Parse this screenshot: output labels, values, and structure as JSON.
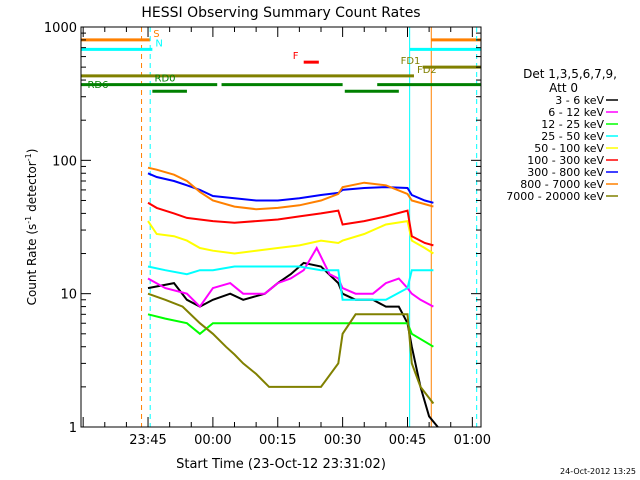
{
  "chart_data": {
    "type": "line",
    "title": "HESSI Observing Summary Count Rates",
    "xlabel": "Start Time (23-Oct-12 23:31:02)",
    "ylabel": "Count Rate (s",
    "ylabel_sup1": "-1",
    "ylabel_mid": " detector",
    "ylabel_sup2": "-1",
    "ylabel_end": ")",
    "yscale": "log",
    "ylim": [
      1,
      1000
    ],
    "xlim_minutes": [
      -15.5,
      77.0
    ],
    "x_ticks": [
      {
        "minute": 0,
        "label": "23:45"
      },
      {
        "minute": 15,
        "label": "00:00"
      },
      {
        "minute": 30,
        "label": "00:15"
      },
      {
        "minute": 45,
        "label": "00:30"
      },
      {
        "minute": 60,
        "label": "00:45"
      },
      {
        "minute": 75,
        "label": "01:00"
      }
    ],
    "y_ticks": [
      {
        "value": 1,
        "label": "1"
      },
      {
        "value": 10,
        "label": "10"
      },
      {
        "value": 100,
        "label": "100"
      },
      {
        "value": 1000,
        "label": "1000"
      }
    ],
    "legend": {
      "header1": "Det 1,3,5,6,7,9,",
      "header2": "Att 0",
      "placement": "right"
    },
    "timestamp": "24-Oct-2012 13:25",
    "series": [
      {
        "name": "3 - 6 keV",
        "color": "#000000",
        "x": [
          0,
          6,
          9,
          12,
          15,
          19,
          22,
          27,
          30,
          33,
          36,
          40,
          44,
          45,
          48,
          52,
          55,
          58,
          60,
          61,
          63,
          65,
          67
        ],
        "y": [
          11,
          12,
          9,
          8,
          9,
          10,
          9,
          10,
          12,
          14,
          17,
          16,
          12,
          10,
          9,
          9,
          8,
          8,
          6,
          4,
          2,
          1.2,
          1
        ]
      },
      {
        "name": "6 - 12 keV",
        "color": "#ff00ff",
        "x": [
          0,
          4,
          9,
          12,
          15,
          19,
          22,
          27,
          30,
          33,
          36,
          39,
          42,
          44,
          45,
          48,
          52,
          55,
          58,
          60,
          61,
          63,
          66
        ],
        "y": [
          13,
          11,
          10,
          8,
          11,
          12,
          10,
          10,
          12,
          13,
          15,
          22,
          14,
          13,
          11,
          10,
          10,
          12,
          13,
          11,
          10,
          9,
          8
        ]
      },
      {
        "name": "12 - 25 keV",
        "color": "#00ff00",
        "x": [
          0,
          4,
          9,
          12,
          15,
          20,
          25,
          30,
          35,
          40,
          44,
          45,
          50,
          55,
          60,
          61,
          66
        ],
        "y": [
          7,
          6.5,
          6,
          5,
          6,
          6,
          6,
          6,
          6,
          6,
          6,
          6,
          6,
          6,
          6,
          5,
          4
        ]
      },
      {
        "name": "25 - 50 keV",
        "color": "#00ffff",
        "x": [
          0,
          4,
          9,
          12,
          15,
          20,
          25,
          30,
          35,
          40,
          44,
          45,
          50,
          55,
          60,
          61,
          66
        ],
        "y": [
          16,
          15,
          14,
          15,
          15,
          16,
          16,
          16,
          16,
          15,
          15,
          9,
          9,
          9,
          11,
          15,
          15
        ]
      },
      {
        "name": "50 - 100 keV",
        "color": "#ffff00",
        "x": [
          0,
          2,
          6,
          9,
          12,
          15,
          20,
          25,
          30,
          35,
          40,
          44,
          45,
          50,
          55,
          60,
          61,
          64,
          66
        ],
        "y": [
          35,
          28,
          27,
          25,
          22,
          21,
          20,
          21,
          22,
          23,
          25,
          24,
          25,
          28,
          33,
          35,
          25,
          22,
          20
        ]
      },
      {
        "name": "100 - 300 keV",
        "color": "#ff0000",
        "x": [
          0,
          2,
          6,
          9,
          12,
          15,
          20,
          25,
          30,
          35,
          40,
          44,
          45,
          50,
          55,
          60,
          61,
          64,
          66
        ],
        "y": [
          48,
          44,
          40,
          37,
          36,
          35,
          34,
          35,
          36,
          38,
          40,
          42,
          33,
          35,
          38,
          42,
          27,
          24,
          23
        ]
      },
      {
        "name": "300 - 800 keV",
        "color": "#0000ff",
        "x": [
          0,
          2,
          6,
          9,
          12,
          15,
          20,
          25,
          30,
          35,
          40,
          44,
          45,
          50,
          55,
          60,
          61,
          64,
          66
        ],
        "y": [
          80,
          75,
          70,
          65,
          60,
          54,
          52,
          50,
          50,
          52,
          55,
          57,
          60,
          62,
          63,
          62,
          55,
          50,
          48
        ]
      },
      {
        "name": "800 - 7000 keV",
        "color": "#ff8000",
        "x": [
          0,
          2,
          6,
          9,
          12,
          15,
          20,
          25,
          30,
          35,
          40,
          44,
          45,
          50,
          55,
          60,
          61,
          64,
          66
        ],
        "y": [
          88,
          85,
          78,
          70,
          58,
          50,
          45,
          43,
          44,
          46,
          50,
          56,
          63,
          68,
          65,
          56,
          50,
          47,
          45
        ]
      },
      {
        "name": "7000 - 20000 keV",
        "color": "#808000",
        "x": [
          0,
          4,
          8,
          12,
          15,
          18,
          20,
          22,
          25,
          28,
          30,
          33,
          36,
          40,
          44,
          45,
          48,
          50,
          52,
          55,
          58,
          60,
          61,
          63,
          66
        ],
        "y": [
          10,
          9,
          8,
          6,
          5,
          4,
          3.5,
          3,
          2.5,
          2,
          2,
          2,
          2,
          2,
          3,
          5,
          7,
          7,
          7,
          7,
          7,
          7,
          3,
          2,
          1.5
        ]
      }
    ],
    "overlays": [
      {
        "label": "S",
        "color": "#ff8000",
        "segments": [
          [
            -15.5,
            0.5
          ]
        ],
        "y": 800,
        "vlines_dashed": [
          -1.5
        ],
        "vlines_solid": [
          65.5
        ],
        "tail": [
          [
            65.5,
            77.0
          ]
        ]
      },
      {
        "label": "N",
        "color": "#00ffff",
        "segments": [
          [
            -15.5,
            1
          ]
        ],
        "y": 680,
        "vlines_dashed": [
          0.5,
          76.0
        ],
        "vlines_solid": [
          60.5
        ],
        "tail": [
          [
            60.5,
            77.0
          ]
        ]
      },
      {
        "label": "F",
        "color": "#ff0000",
        "segments": [
          [
            36,
            39.5
          ]
        ],
        "y": 545
      },
      {
        "label": "FD1",
        "color": "#808000",
        "segments": [
          [
            63.5,
            77.0
          ]
        ],
        "y": 500
      },
      {
        "label": "FD2",
        "color": "#808000",
        "segments": [
          [
            -15.5,
            61.5
          ]
        ],
        "y": 430
      },
      {
        "label": "RD0",
        "color": "#008000",
        "segments": [
          [
            -15.5,
            16
          ],
          [
            17,
            45
          ],
          [
            53,
            77.0
          ]
        ],
        "y": 370
      },
      {
        "label": "RD6",
        "color": "#008000",
        "segments": [
          [
            1,
            9
          ],
          [
            45.5,
            58
          ]
        ],
        "y": 330
      }
    ]
  }
}
